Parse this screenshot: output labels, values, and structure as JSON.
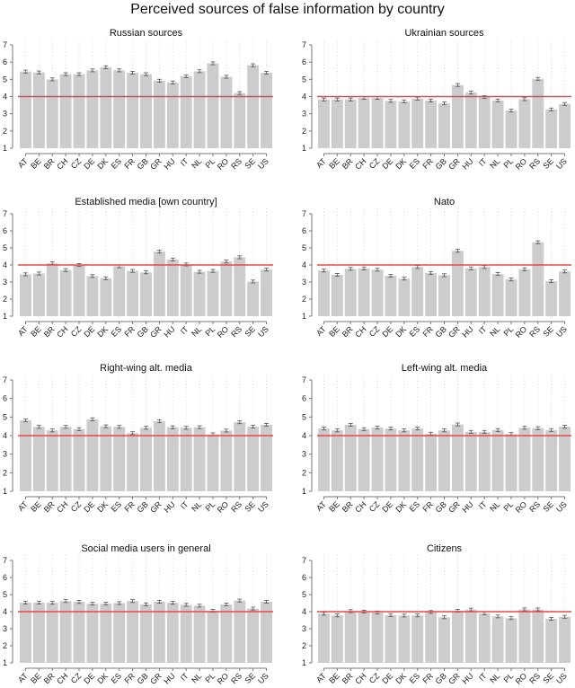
{
  "title": "Perceived sources of false information by country",
  "chart_data": {
    "type": "bar",
    "layout": "4x2 small multiples",
    "categories": [
      "AT",
      "BE",
      "BR",
      "CH",
      "CZ",
      "DE",
      "DK",
      "ES",
      "FR",
      "GB",
      "GR",
      "HU",
      "IT",
      "NL",
      "PL",
      "RO",
      "RS",
      "SE",
      "US"
    ],
    "ylim": [
      1,
      7
    ],
    "yticks": [
      1,
      2,
      3,
      4,
      5,
      6,
      7
    ],
    "reference_line": {
      "y": 4,
      "color": "#e8484a"
    },
    "bar_color": "#cccccc",
    "error_bars": true,
    "grid": "vertical dotted",
    "panels": [
      {
        "title": "Russian sources",
        "values": [
          5.45,
          5.4,
          5.0,
          5.3,
          5.3,
          5.52,
          5.7,
          5.52,
          5.38,
          5.3,
          4.92,
          4.82,
          5.18,
          5.47,
          5.93,
          5.15,
          4.2,
          5.82,
          5.38
        ]
      },
      {
        "title": "Ukrainian sources",
        "values": [
          3.83,
          3.83,
          3.83,
          3.92,
          3.92,
          3.75,
          3.72,
          3.88,
          3.77,
          3.6,
          4.67,
          4.23,
          3.97,
          3.77,
          3.18,
          3.85,
          5.03,
          3.25,
          3.57
        ]
      },
      {
        "title": "Established media [own country]",
        "values": [
          3.45,
          3.5,
          4.1,
          3.7,
          4.0,
          3.35,
          3.22,
          3.92,
          3.65,
          3.57,
          4.78,
          4.32,
          4.03,
          3.6,
          3.65,
          4.2,
          4.45,
          3.03,
          3.73
        ]
      },
      {
        "title": "Nato",
        "values": [
          3.67,
          3.42,
          3.77,
          3.8,
          3.72,
          3.37,
          3.2,
          3.88,
          3.53,
          3.4,
          4.83,
          3.8,
          3.88,
          3.47,
          3.15,
          3.75,
          5.33,
          3.05,
          3.62
        ]
      },
      {
        "title": "Right-wing alt. media",
        "values": [
          4.82,
          4.47,
          4.28,
          4.47,
          4.35,
          4.88,
          4.5,
          4.47,
          4.13,
          4.42,
          4.77,
          4.45,
          4.42,
          4.45,
          4.07,
          4.27,
          4.72,
          4.48,
          4.58
        ]
      },
      {
        "title": "Left-wing alt. media",
        "values": [
          4.38,
          4.28,
          4.58,
          4.35,
          4.43,
          4.38,
          4.28,
          4.38,
          4.1,
          4.28,
          4.6,
          4.2,
          4.2,
          4.3,
          4.08,
          4.42,
          4.4,
          4.3,
          4.48
        ]
      },
      {
        "title": "Social media users in general",
        "values": [
          4.53,
          4.53,
          4.52,
          4.62,
          4.57,
          4.47,
          4.47,
          4.5,
          4.62,
          4.43,
          4.58,
          4.52,
          4.4,
          4.35,
          4.05,
          4.42,
          4.65,
          4.18,
          4.58
        ]
      },
      {
        "title": "Citizens",
        "values": [
          3.88,
          3.78,
          4.03,
          4.0,
          3.95,
          3.8,
          3.77,
          3.78,
          3.98,
          3.67,
          4.05,
          4.12,
          3.9,
          3.72,
          3.62,
          4.13,
          4.13,
          3.58,
          3.7
        ]
      }
    ]
  }
}
